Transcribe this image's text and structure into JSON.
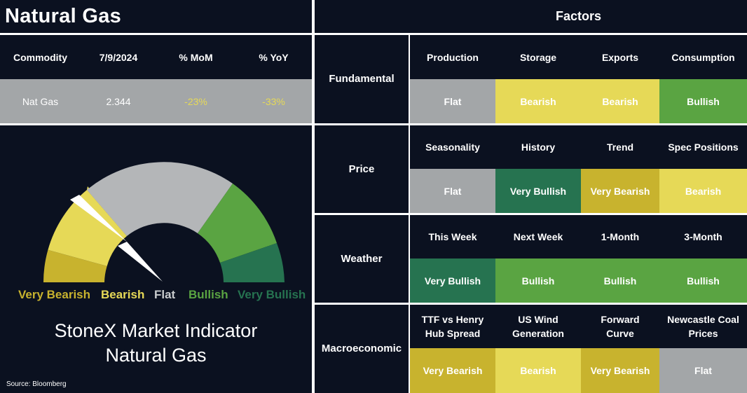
{
  "header": {
    "title": "Natural Gas",
    "factors_title": "Factors"
  },
  "commodity_table": {
    "columns": [
      "Commodity",
      "7/9/2024",
      "% MoM",
      "% YoY"
    ],
    "row": [
      "Nat Gas",
      "2.344",
      "-23%",
      "-33%"
    ]
  },
  "gauge": {
    "legend": [
      "Very Bearish",
      "Bearish",
      "Flat",
      "Bullish",
      "Very Bullish"
    ],
    "legend_colors": [
      "#c8b32e",
      "#e6d957",
      "#c9ccce",
      "#5aa442",
      "#267350"
    ],
    "title_line1": "StoneX Market Indicator",
    "title_line2": "Natural Gas"
  },
  "factors": [
    {
      "group": "Fundamental",
      "items": [
        "Production",
        "Storage",
        "Exports",
        "Consumption"
      ],
      "ratings": [
        "Flat",
        "Bearish",
        "Bearish",
        "Bullish"
      ]
    },
    {
      "group": "Price",
      "items": [
        "Seasonality",
        "History",
        "Trend",
        "Spec Positions"
      ],
      "ratings": [
        "Flat",
        "Very Bullish",
        "Very Bearish",
        "Bearish"
      ]
    },
    {
      "group": "Weather",
      "items": [
        "This Week",
        "Next Week",
        "1-Month",
        "3-Month"
      ],
      "ratings": [
        "Very Bullish",
        "Bullish",
        "Bullish",
        "Bullish"
      ]
    },
    {
      "group": "Macroeconomic",
      "items": [
        "TTF vs Henry Hub Spread",
        "US Wind Generation",
        "Forward Curve",
        "Newcastle Coal Prices"
      ],
      "ratings": [
        "Very Bearish",
        "Bearish",
        "Very Bearish",
        "Flat"
      ]
    }
  ],
  "chart_data": {
    "type": "table",
    "title": "Natural Gas",
    "columns": [
      "Production",
      "Storage",
      "Exports",
      "Consumption",
      "Seasonality",
      "History",
      "Trend",
      "Spec Positions",
      "This Week",
      "Next Week",
      "1-Month",
      "3-Month",
      "TTF vs Henry Hub Spread",
      "US Wind Generation",
      "Forward Curve",
      "Newcastle Coal Prices"
    ],
    "values": [
      "Flat",
      "Bearish",
      "Bearish",
      "Bullish",
      "Flat",
      "Very Bullish",
      "Very Bearish",
      "Bearish",
      "Very Bullish",
      "Bullish",
      "Bullish",
      "Bullish",
      "Very Bearish",
      "Bearish",
      "Very Bearish",
      "Flat"
    ]
  },
  "source": "Source: Bloomberg"
}
